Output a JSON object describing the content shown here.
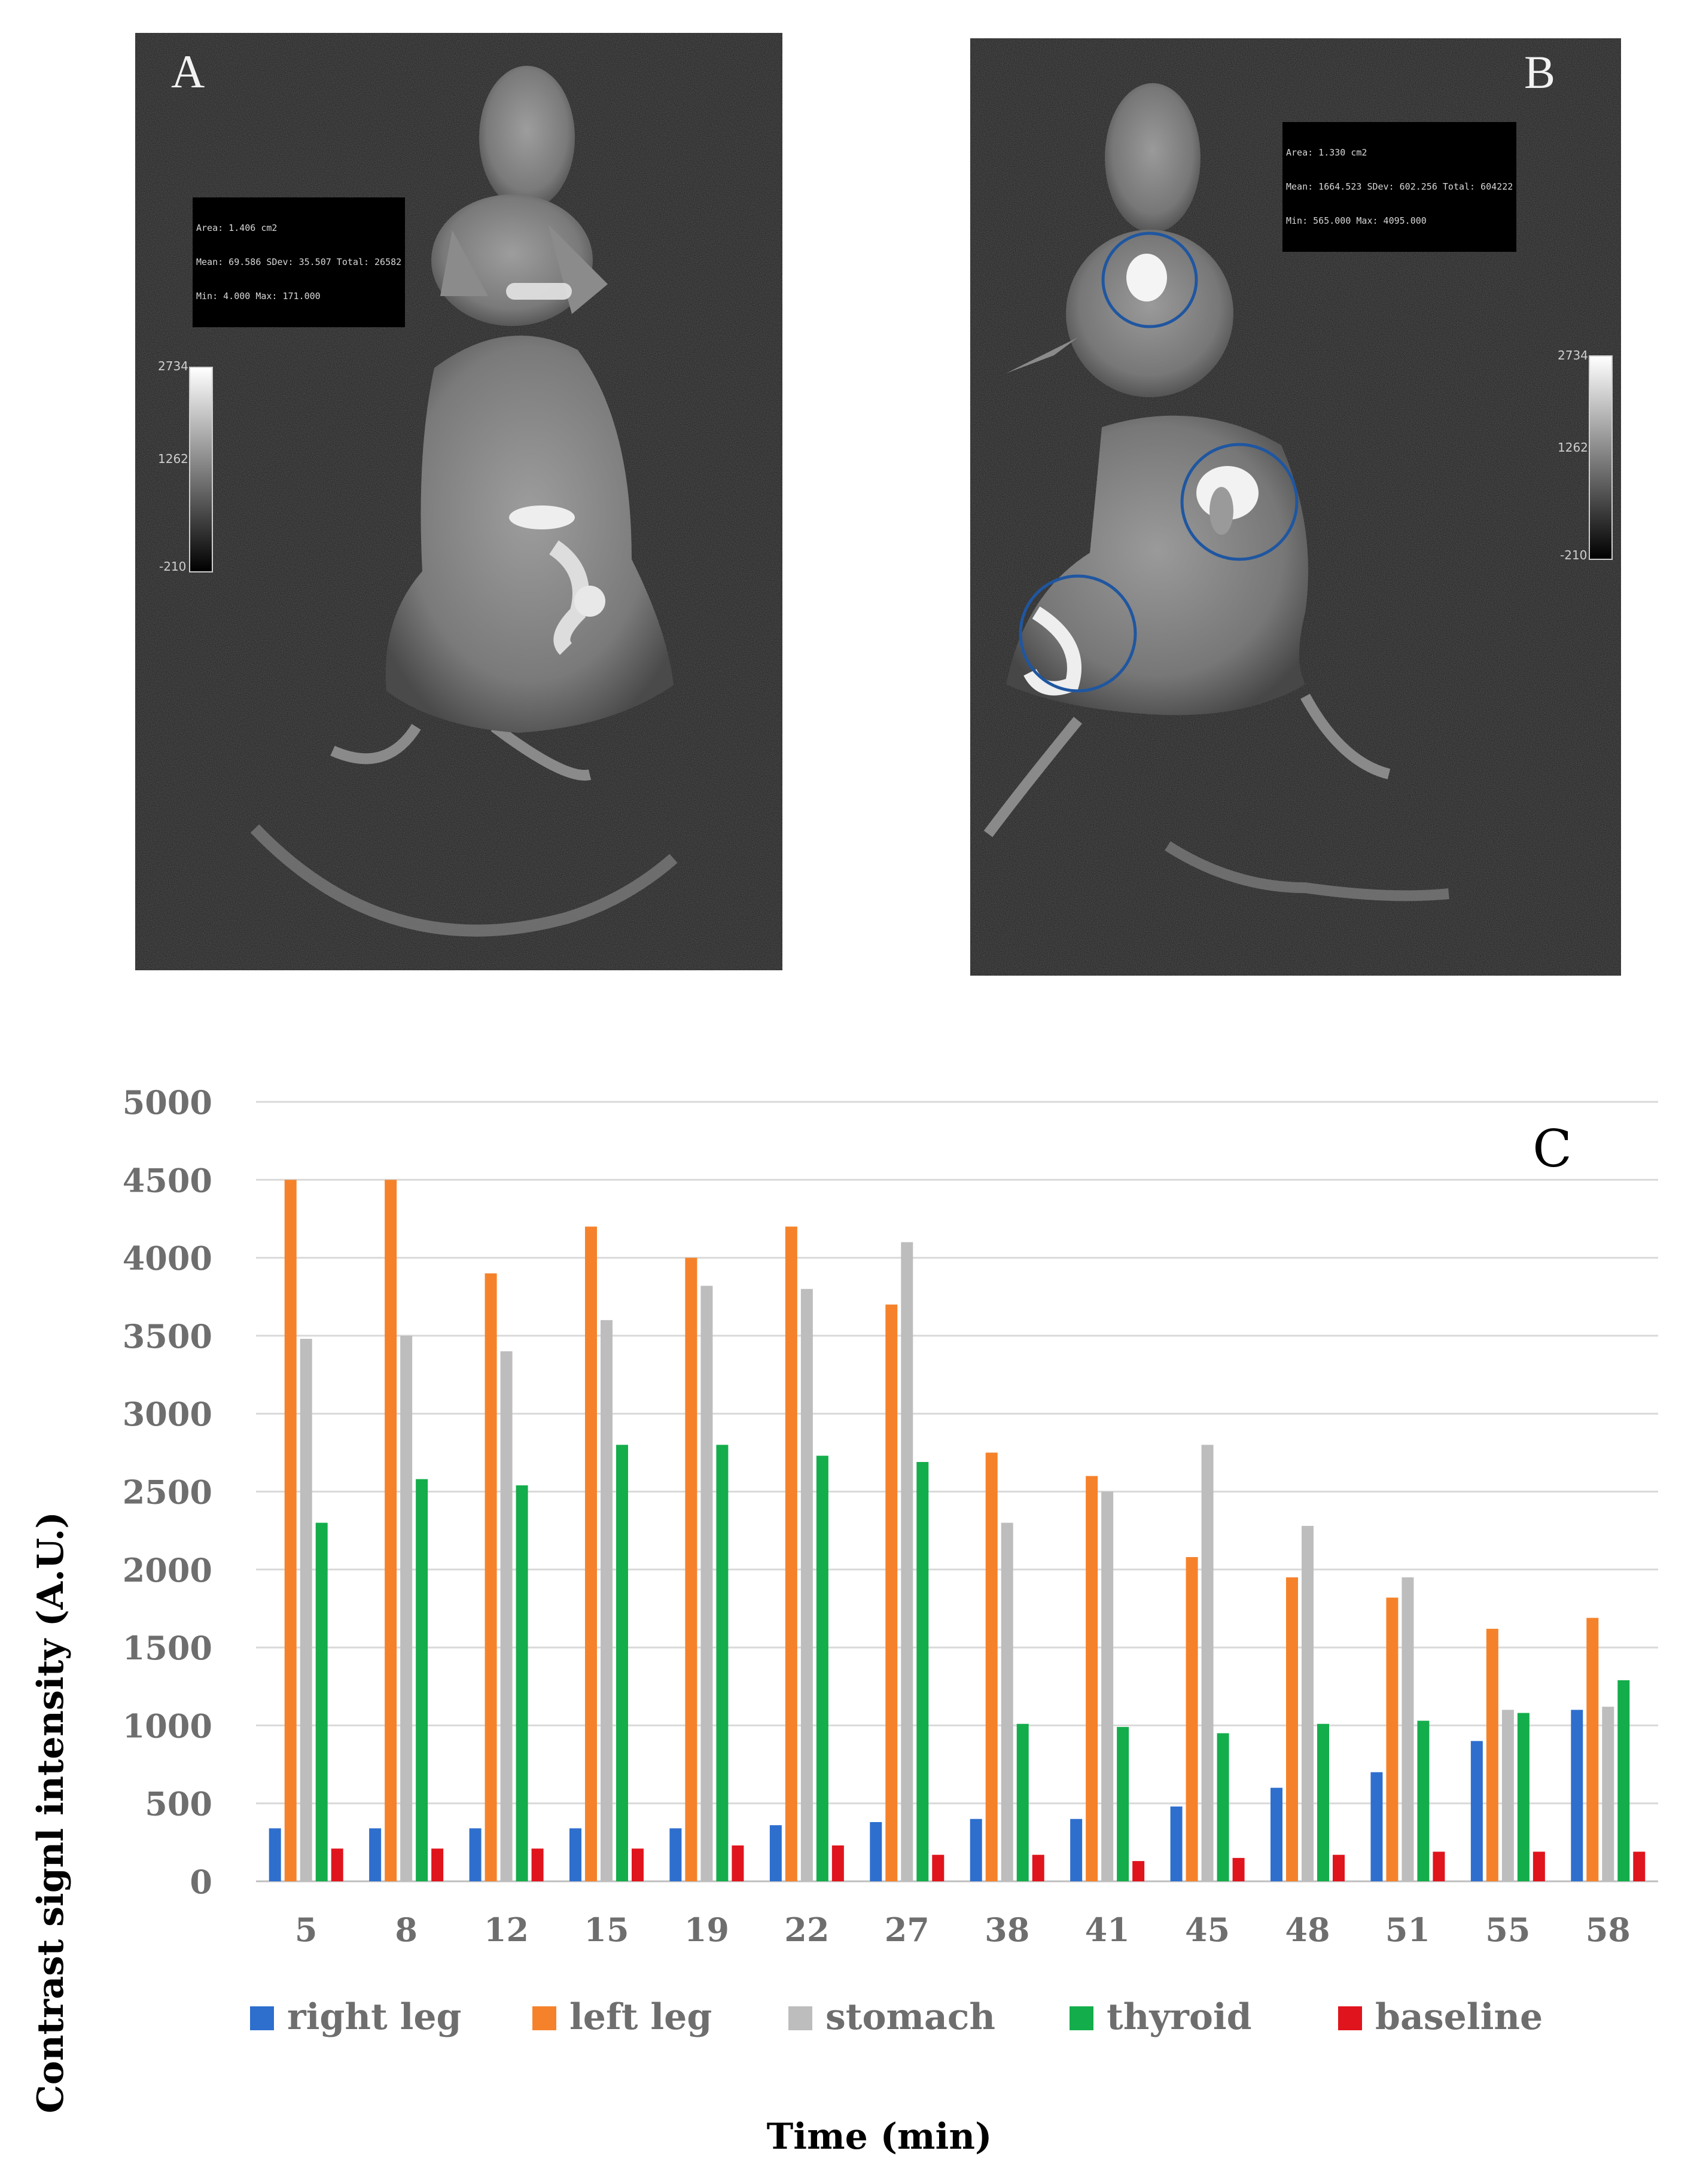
{
  "panels": {
    "a": {
      "label": "A",
      "roi": {
        "line1": "Area: 1.406 cm2",
        "line2": "Mean: 69.586 SDev: 35.507 Total: 26582",
        "line3": "Min: 4.000 Max: 171.000"
      },
      "scale": {
        "max": "2734",
        "mid": "1262",
        "min": "-210"
      }
    },
    "b": {
      "label": "B",
      "roi": {
        "line1": "Area: 1.330 cm2",
        "line2": "Mean: 1664.523 SDev: 602.256 Total: 604222",
        "line3": "Min: 565.000 Max: 4095.000"
      },
      "scale": {
        "max": "2734",
        "mid": "1262",
        "min": "-210"
      }
    }
  },
  "chart_data": {
    "type": "bar",
    "panel_label": "C",
    "xlabel": "Time (min)",
    "ylabel": "Contrast signl intensity (A.U.)",
    "ylim": [
      0,
      5000
    ],
    "yticks": [
      0,
      500,
      1000,
      1500,
      2000,
      2500,
      3000,
      3500,
      4000,
      4500,
      5000
    ],
    "categories": [
      "5",
      "8",
      "12",
      "15",
      "19",
      "22",
      "27",
      "38",
      "41",
      "45",
      "48",
      "51",
      "55",
      "58"
    ],
    "legend_position": "bottom",
    "grid": true,
    "series": [
      {
        "name": "right leg",
        "color": "#2e6fce",
        "values": [
          340,
          340,
          340,
          340,
          340,
          360,
          380,
          400,
          400,
          480,
          600,
          700,
          900,
          1100
        ]
      },
      {
        "name": "left leg",
        "color": "#f5822b",
        "values": [
          4500,
          4500,
          3900,
          4200,
          4000,
          4200,
          3700,
          2750,
          2600,
          2080,
          1950,
          1820,
          1620,
          1690
        ]
      },
      {
        "name": "stomach",
        "color": "#bdbdbd",
        "values": [
          3480,
          3500,
          3400,
          3600,
          3820,
          3800,
          4100,
          2300,
          2500,
          2800,
          2280,
          1950,
          1100,
          1120
        ]
      },
      {
        "name": "thyroid",
        "color": "#14ad4b",
        "values": [
          2300,
          2580,
          2540,
          2800,
          2800,
          2730,
          2690,
          1010,
          990,
          950,
          1010,
          1030,
          1080,
          1290
        ]
      },
      {
        "name": "baseline",
        "color": "#e0141c",
        "values": [
          210,
          210,
          210,
          210,
          230,
          230,
          170,
          170,
          130,
          150,
          170,
          190,
          190,
          190
        ]
      }
    ]
  }
}
